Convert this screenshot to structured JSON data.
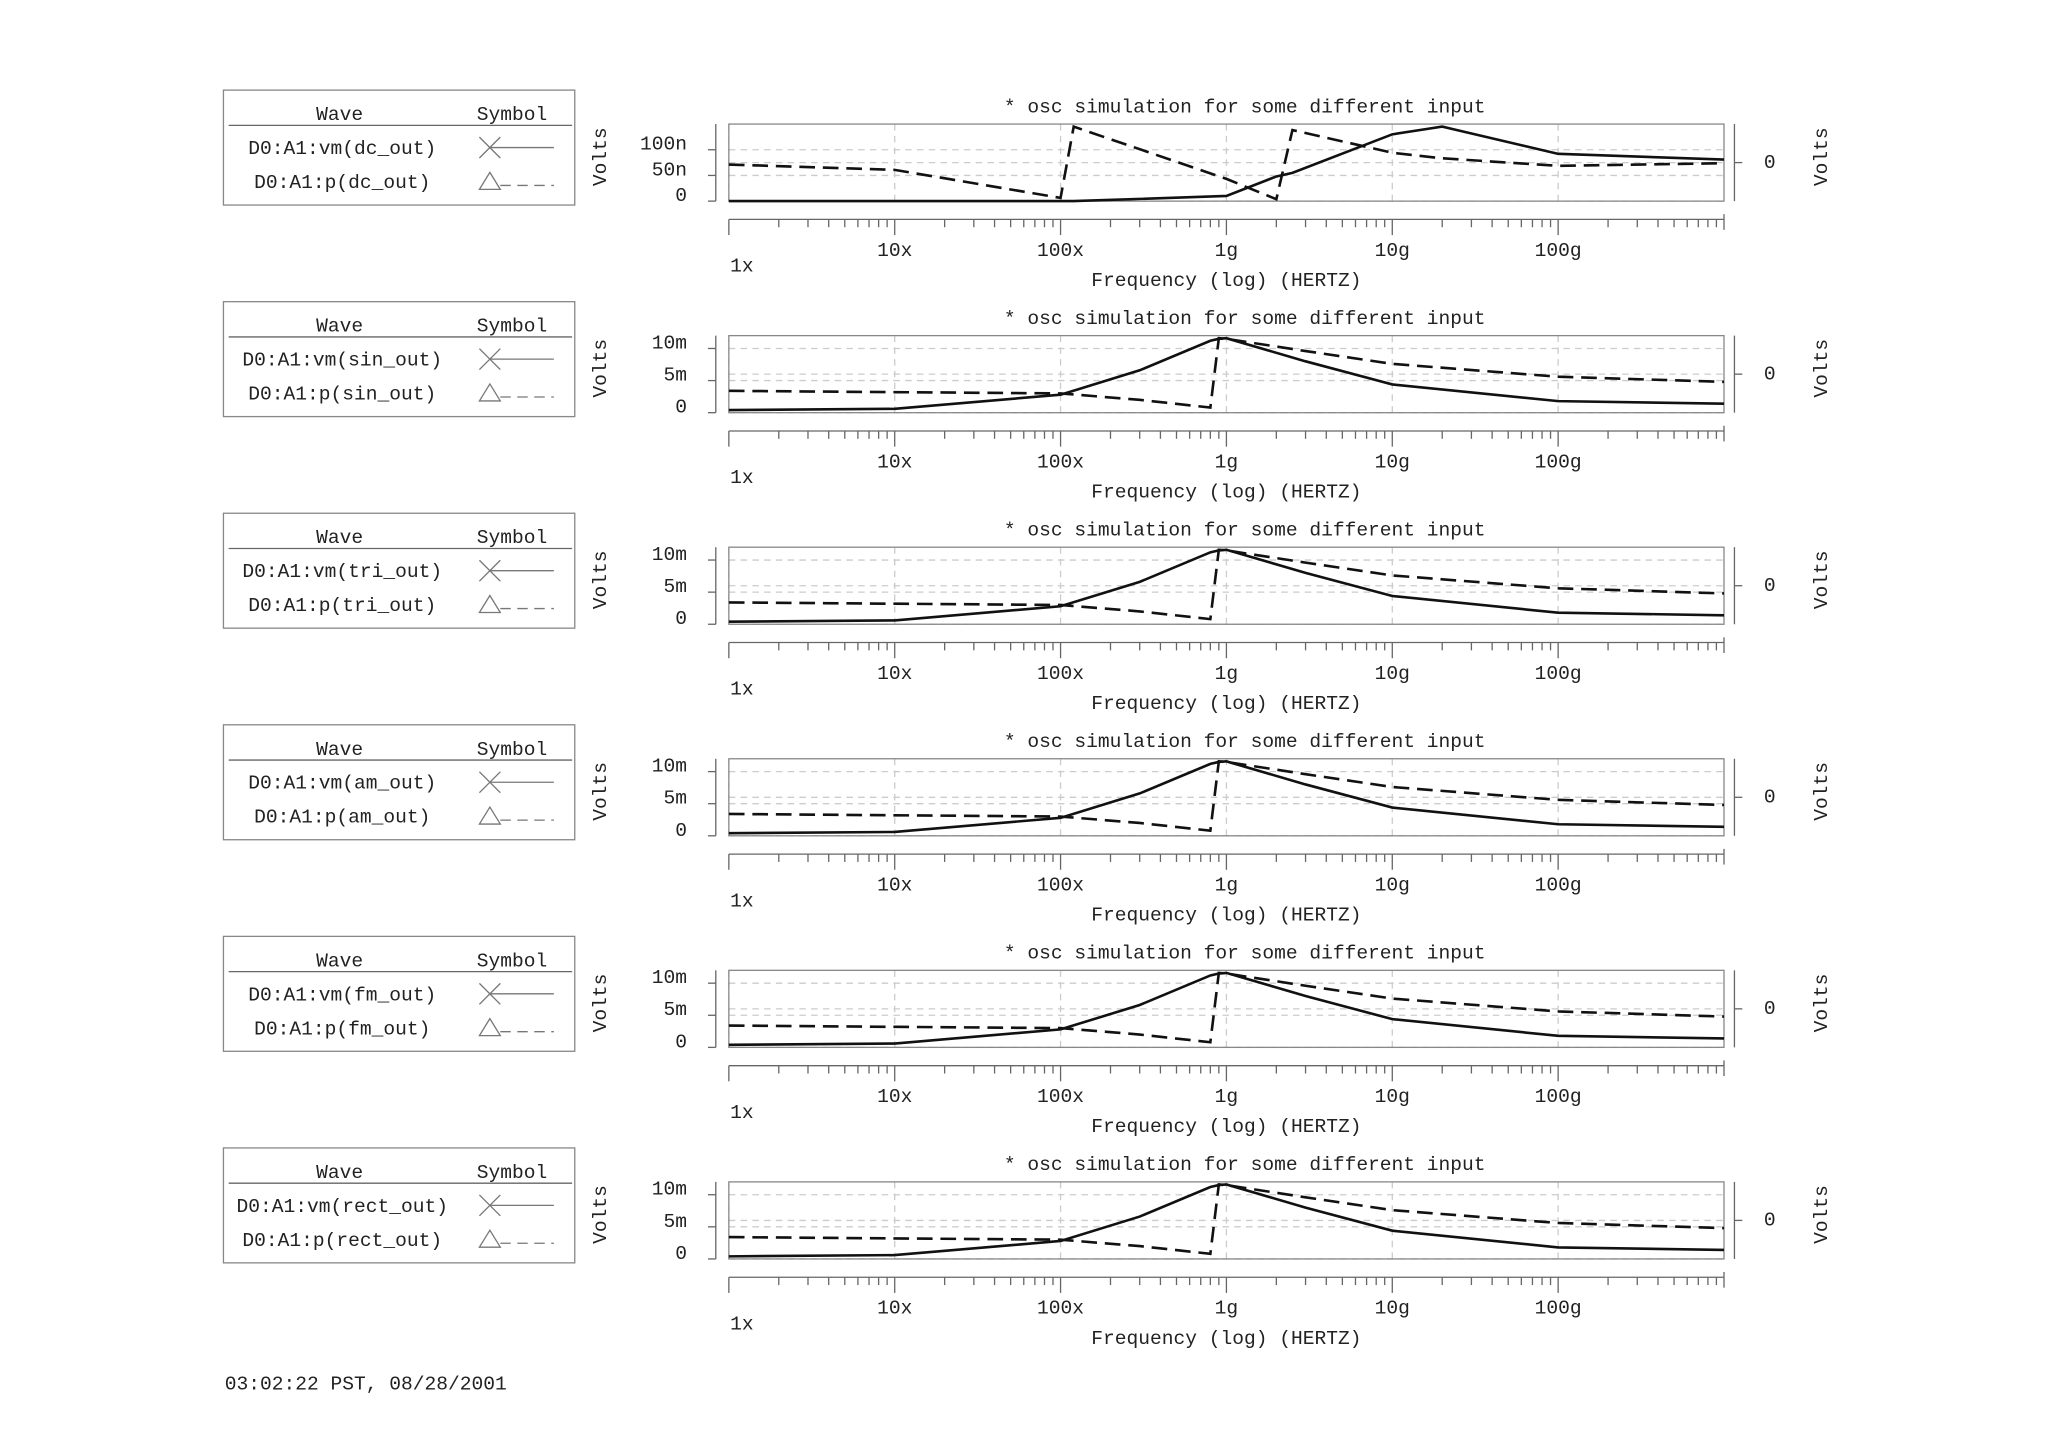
{
  "chart_data": [
    {
      "type": "line",
      "title": "* osc simulation for some different input",
      "xlabel": "Frequency (log) (HERTZ)",
      "ylabel": "Volts",
      "y2label": "Volts",
      "legend_headers": [
        "Wave",
        "Symbol"
      ],
      "log_x": true,
      "grid": true,
      "x": [
        1,
        10,
        100,
        120,
        1000,
        2000,
        2500,
        10000,
        20000,
        100000,
        1000000
      ],
      "xlim": [
        1,
        1000000
      ],
      "xticks": [
        {
          "value": 1,
          "label": "1x"
        },
        {
          "value": 10,
          "label": "10x"
        },
        {
          "value": 100,
          "label": "100x"
        },
        {
          "value": 1000,
          "label": "1g"
        },
        {
          "value": 10000,
          "label": "10g"
        },
        {
          "value": 100000,
          "label": "100g"
        }
      ],
      "ylim": [
        0,
        1.5e-07
      ],
      "yticks": [
        0,
        {
          "value": 5e-08,
          "label": "50n"
        },
        {
          "value": 1e-07,
          "label": "100n"
        }
      ],
      "y2lim": [
        -180,
        180
      ],
      "y2ticks": [
        0
      ],
      "series": [
        {
          "name": "D0:A1:vm(dc_out)",
          "color": "#111111",
          "line_style": "solid",
          "values": [
            0,
            0,
            0,
            0,
            1e-08,
            4.8e-08,
            5.5e-08,
            1.3e-07,
            1.45e-07,
            9.2e-08,
            8.1e-08
          ]
        },
        {
          "name": "D0:A1:p(dc_out)",
          "color": "#111111",
          "line_style": "dashed",
          "axis": "y2",
          "values": [
            -9,
            -34,
            -165,
            168,
            -76,
            -171,
            152,
            46,
            20,
            -15,
            -3
          ]
        }
      ]
    },
    {
      "type": "line",
      "title": "* osc simulation for some different input",
      "xlabel": "Frequency (log) (HERTZ)",
      "ylabel": "Volts",
      "y2label": "Volts",
      "legend_headers": [
        "Wave",
        "Symbol"
      ],
      "log_x": true,
      "grid": true,
      "x": [
        1,
        10,
        100,
        300,
        800,
        900,
        1000,
        3000,
        10000,
        100000,
        1000000
      ],
      "xlim": [
        1,
        1000000
      ],
      "xticks": [
        {
          "value": 1,
          "label": "1x"
        },
        {
          "value": 10,
          "label": "10x"
        },
        {
          "value": 100,
          "label": "100x"
        },
        {
          "value": 1000,
          "label": "1g"
        },
        {
          "value": 10000,
          "label": "10g"
        },
        {
          "value": 100000,
          "label": "100g"
        }
      ],
      "ylim": [
        0,
        0.012
      ],
      "yticks": [
        0,
        {
          "value": 0.005,
          "label": "5m"
        },
        {
          "value": 0.01,
          "label": "10m"
        }
      ],
      "y2lim": [
        -180,
        180
      ],
      "y2ticks": [
        0
      ],
      "series": [
        {
          "name": "D0:A1:vm(sin_out)",
          "color": "#111111",
          "line_style": "solid",
          "values": [
            0.0004,
            0.0006,
            0.0028,
            0.0066,
            0.0112,
            0.0115,
            0.0116,
            0.008,
            0.0044,
            0.0018,
            0.0014
          ]
        },
        {
          "name": "D0:A1:p(sin_out)",
          "color": "#111111",
          "line_style": "dashed",
          "axis": "y2",
          "values": [
            -78,
            -84,
            -90,
            -120,
            -156,
            168,
            165,
            108,
            48,
            -12,
            -36
          ]
        }
      ]
    },
    {
      "type": "line",
      "title": "* osc simulation for some different input",
      "xlabel": "Frequency (log) (HERTZ)",
      "ylabel": "Volts",
      "y2label": "Volts",
      "legend_headers": [
        "Wave",
        "Symbol"
      ],
      "log_x": true,
      "grid": true,
      "x": [
        1,
        10,
        100,
        300,
        800,
        900,
        1000,
        3000,
        10000,
        100000,
        1000000
      ],
      "xlim": [
        1,
        1000000
      ],
      "xticks": [
        {
          "value": 1,
          "label": "1x"
        },
        {
          "value": 10,
          "label": "10x"
        },
        {
          "value": 100,
          "label": "100x"
        },
        {
          "value": 1000,
          "label": "1g"
        },
        {
          "value": 10000,
          "label": "10g"
        },
        {
          "value": 100000,
          "label": "100g"
        }
      ],
      "ylim": [
        0,
        0.012
      ],
      "yticks": [
        0,
        {
          "value": 0.005,
          "label": "5m"
        },
        {
          "value": 0.01,
          "label": "10m"
        }
      ],
      "y2lim": [
        -180,
        180
      ],
      "y2ticks": [
        0
      ],
      "series": [
        {
          "name": "D0:A1:vm(tri_out)",
          "color": "#111111",
          "line_style": "solid",
          "values": [
            0.0004,
            0.0006,
            0.0028,
            0.0066,
            0.0112,
            0.0115,
            0.0116,
            0.008,
            0.0044,
            0.0018,
            0.0014
          ]
        },
        {
          "name": "D0:A1:p(tri_out)",
          "color": "#111111",
          "line_style": "dashed",
          "axis": "y2",
          "values": [
            -78,
            -84,
            -90,
            -120,
            -156,
            168,
            165,
            108,
            48,
            -12,
            -36
          ]
        }
      ]
    },
    {
      "type": "line",
      "title": "* osc simulation for some different input",
      "xlabel": "Frequency (log) (HERTZ)",
      "ylabel": "Volts",
      "y2label": "Volts",
      "legend_headers": [
        "Wave",
        "Symbol"
      ],
      "log_x": true,
      "grid": true,
      "x": [
        1,
        10,
        100,
        300,
        800,
        900,
        1000,
        3000,
        10000,
        100000,
        1000000
      ],
      "xlim": [
        1,
        1000000
      ],
      "xticks": [
        {
          "value": 1,
          "label": "1x"
        },
        {
          "value": 10,
          "label": "10x"
        },
        {
          "value": 100,
          "label": "100x"
        },
        {
          "value": 1000,
          "label": "1g"
        },
        {
          "value": 10000,
          "label": "10g"
        },
        {
          "value": 100000,
          "label": "100g"
        }
      ],
      "ylim": [
        0,
        0.012
      ],
      "yticks": [
        0,
        {
          "value": 0.005,
          "label": "5m"
        },
        {
          "value": 0.01,
          "label": "10m"
        }
      ],
      "y2lim": [
        -180,
        180
      ],
      "y2ticks": [
        0
      ],
      "series": [
        {
          "name": "D0:A1:vm(am_out)",
          "color": "#111111",
          "line_style": "solid",
          "values": [
            0.0004,
            0.0006,
            0.0028,
            0.0066,
            0.0112,
            0.0115,
            0.0116,
            0.008,
            0.0044,
            0.0018,
            0.0014
          ]
        },
        {
          "name": "D0:A1:p(am_out)",
          "color": "#111111",
          "line_style": "dashed",
          "axis": "y2",
          "values": [
            -78,
            -84,
            -90,
            -120,
            -156,
            168,
            165,
            108,
            48,
            -12,
            -36
          ]
        }
      ]
    },
    {
      "type": "line",
      "title": "* osc simulation for some different input",
      "xlabel": "Frequency (log) (HERTZ)",
      "ylabel": "Volts",
      "y2label": "Volts",
      "legend_headers": [
        "Wave",
        "Symbol"
      ],
      "log_x": true,
      "grid": true,
      "x": [
        1,
        10,
        100,
        300,
        800,
        900,
        1000,
        3000,
        10000,
        100000,
        1000000
      ],
      "xlim": [
        1,
        1000000
      ],
      "xticks": [
        {
          "value": 1,
          "label": "1x"
        },
        {
          "value": 10,
          "label": "10x"
        },
        {
          "value": 100,
          "label": "100x"
        },
        {
          "value": 1000,
          "label": "1g"
        },
        {
          "value": 10000,
          "label": "10g"
        },
        {
          "value": 100000,
          "label": "100g"
        }
      ],
      "ylim": [
        0,
        0.012
      ],
      "yticks": [
        0,
        {
          "value": 0.005,
          "label": "5m"
        },
        {
          "value": 0.01,
          "label": "10m"
        }
      ],
      "y2lim": [
        -180,
        180
      ],
      "y2ticks": [
        0
      ],
      "series": [
        {
          "name": "D0:A1:vm(fm_out)",
          "color": "#111111",
          "line_style": "solid",
          "values": [
            0.0004,
            0.0006,
            0.0028,
            0.0066,
            0.0112,
            0.0115,
            0.0116,
            0.008,
            0.0044,
            0.0018,
            0.0014
          ]
        },
        {
          "name": "D0:A1:p(fm_out)",
          "color": "#111111",
          "line_style": "dashed",
          "axis": "y2",
          "values": [
            -78,
            -84,
            -90,
            -120,
            -156,
            168,
            165,
            108,
            48,
            -12,
            -36
          ]
        }
      ]
    },
    {
      "type": "line",
      "title": "* osc simulation for some different input",
      "xlabel": "Frequency (log) (HERTZ)",
      "ylabel": "Volts",
      "y2label": "Volts",
      "legend_headers": [
        "Wave",
        "Symbol"
      ],
      "log_x": true,
      "grid": true,
      "x": [
        1,
        10,
        100,
        300,
        800,
        900,
        1000,
        3000,
        10000,
        100000,
        1000000
      ],
      "xlim": [
        1,
        1000000
      ],
      "xticks": [
        {
          "value": 1,
          "label": "1x"
        },
        {
          "value": 10,
          "label": "10x"
        },
        {
          "value": 100,
          "label": "100x"
        },
        {
          "value": 1000,
          "label": "1g"
        },
        {
          "value": 10000,
          "label": "10g"
        },
        {
          "value": 100000,
          "label": "100g"
        }
      ],
      "ylim": [
        0,
        0.012
      ],
      "yticks": [
        0,
        {
          "value": 0.005,
          "label": "5m"
        },
        {
          "value": 0.01,
          "label": "10m"
        }
      ],
      "y2lim": [
        -180,
        180
      ],
      "y2ticks": [
        0
      ],
      "series": [
        {
          "name": "D0:A1:vm(rect_out)",
          "color": "#111111",
          "line_style": "solid",
          "values": [
            0.0004,
            0.0006,
            0.0028,
            0.0066,
            0.0112,
            0.0115,
            0.0116,
            0.008,
            0.0044,
            0.0018,
            0.0014
          ]
        },
        {
          "name": "D0:A1:p(rect_out)",
          "color": "#111111",
          "line_style": "dashed",
          "axis": "y2",
          "values": [
            -78,
            -84,
            -90,
            -120,
            -156,
            168,
            165,
            108,
            48,
            -12,
            -36
          ]
        }
      ]
    }
  ],
  "footer": "03:02:22 PST, 08/28/2001"
}
